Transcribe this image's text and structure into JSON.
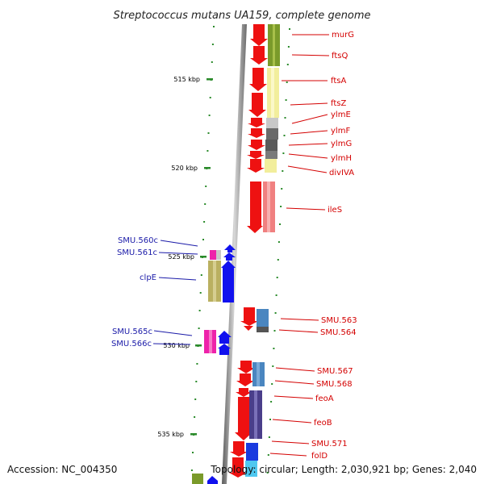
{
  "title": "Streptococcus mutans UA159, complete genome",
  "footer": {
    "accession": "Accession: NC_004350",
    "topology": "Topology: circular; Length: 2,030,921 bp; Genes: 2,040"
  },
  "ticks": [
    {
      "label": "515 kbp"
    },
    {
      "label": "520 kbp"
    },
    {
      "label": "525 kbp"
    },
    {
      "label": "530 kbp"
    },
    {
      "label": "535 kbp"
    }
  ],
  "genes_right": [
    {
      "label": "murG"
    },
    {
      "label": "ftsQ"
    },
    {
      "label": "ftsA"
    },
    {
      "label": "ftsZ"
    },
    {
      "label": "ylmE"
    },
    {
      "label": "ylmF"
    },
    {
      "label": "ylmG"
    },
    {
      "label": "ylmH"
    },
    {
      "label": "divIVA"
    },
    {
      "label": "ileS"
    },
    {
      "label": "SMU.563"
    },
    {
      "label": "SMU.564"
    },
    {
      "label": "SMU.567"
    },
    {
      "label": "SMU.568"
    },
    {
      "label": "feoA"
    },
    {
      "label": "feoB"
    },
    {
      "label": "SMU.571"
    },
    {
      "label": "folD"
    }
  ],
  "genes_left": [
    {
      "label": "SMU.560c"
    },
    {
      "label": "SMU.561c"
    },
    {
      "label": "clpE"
    },
    {
      "label": "SMU.565c"
    },
    {
      "label": "SMU.566c"
    }
  ],
  "colors": {
    "forward_strand": "#ee1111",
    "reverse_strand": "#1111ee",
    "label_forward": "#d40000",
    "label_reverse": "#1a1aa8",
    "backbone": "#888888",
    "tick": "#2a8a2a"
  }
}
